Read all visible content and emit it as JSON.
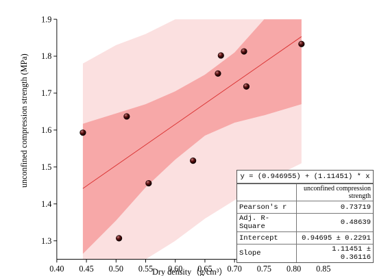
{
  "chart_data": {
    "type": "scatter",
    "title": "",
    "xlabel": "Dry density（g/cm³）",
    "ylabel": "unconfined compression strength (MPa)",
    "xlim": [
      0.4,
      0.85
    ],
    "ylim": [
      1.25,
      1.9
    ],
    "xticks": [
      "0.40",
      "0.45",
      "0.50",
      "0.55",
      "0.60",
      "0.65",
      "0.70",
      "0.75",
      "0.80",
      "0.85"
    ],
    "yticks": [
      "1.3",
      "1.4",
      "1.5",
      "1.6",
      "1.7",
      "1.8",
      "1.9"
    ],
    "points": [
      {
        "x": 0.444,
        "y": 1.593
      },
      {
        "x": 0.505,
        "y": 1.307
      },
      {
        "x": 0.518,
        "y": 1.637
      },
      {
        "x": 0.555,
        "y": 1.456
      },
      {
        "x": 0.63,
        "y": 1.517
      },
      {
        "x": 0.672,
        "y": 1.753
      },
      {
        "x": 0.677,
        "y": 1.802
      },
      {
        "x": 0.716,
        "y": 1.813
      },
      {
        "x": 0.72,
        "y": 1.718
      },
      {
        "x": 0.813,
        "y": 1.833
      }
    ],
    "fit": {
      "intercept": 0.946955,
      "slope": 1.11451,
      "x_range": [
        0.444,
        0.813
      ]
    },
    "confidence_band": {
      "x": [
        0.444,
        0.5,
        0.55,
        0.6,
        0.65,
        0.7,
        0.75,
        0.813
      ],
      "lower": [
        1.265,
        1.355,
        1.445,
        1.52,
        1.585,
        1.62,
        1.64,
        1.67
      ],
      "upper": [
        1.617,
        1.645,
        1.67,
        1.705,
        1.75,
        1.81,
        1.9,
        1.9
      ]
    },
    "prediction_band": {
      "x": [
        0.444,
        0.5,
        0.55,
        0.6,
        0.65,
        0.7,
        0.75,
        0.813
      ],
      "lower": [
        1.25,
        1.25,
        1.25,
        1.3,
        1.36,
        1.41,
        1.46,
        1.51
      ],
      "upper": [
        1.78,
        1.83,
        1.86,
        1.9,
        1.9,
        1.9,
        1.9,
        1.9
      ]
    },
    "colors": {
      "prediction": "#fbe0e0",
      "confidence": "#f7a8a8",
      "fit_line": "#d93030",
      "point": "#3a0a0a"
    }
  },
  "stats": {
    "equation": "y = (0.946955) + (1.11451) * x",
    "column_header": "unconfined compression strength",
    "rows": [
      {
        "key": "Pearson's r",
        "value": "0.73719"
      },
      {
        "key": "Adj. R-Square",
        "value": "0.48639"
      },
      {
        "key": "Intercept",
        "value": "0.94695 ± 0.2291"
      },
      {
        "key": "Slope",
        "value": "1.11451 ± 0.36116"
      }
    ]
  }
}
